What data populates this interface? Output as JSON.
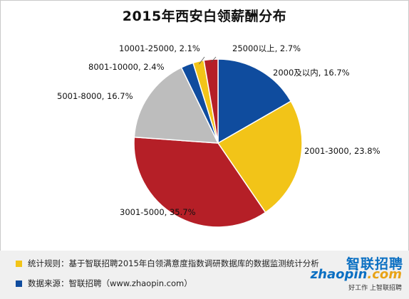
{
  "chart_data": {
    "type": "pie",
    "title": "2015年西安白领薪酬分布",
    "slices": [
      {
        "label": "2000及以内",
        "value": 16.7,
        "display": "2000及以内, 16.7%",
        "color": "#0f4c9e"
      },
      {
        "label": "2001-3000",
        "value": 23.8,
        "display": "2001-3000, 23.8%",
        "color": "#f2c418"
      },
      {
        "label": "3001-5000",
        "value": 35.7,
        "display": "3001-5000, 35.7%",
        "color": "#b51f27"
      },
      {
        "label": "5001-8000",
        "value": 16.7,
        "display": "5001-8000, 16.7%",
        "color": "#bdbdbd"
      },
      {
        "label": "8001-10000",
        "value": 2.4,
        "display": "8001-10000, 2.4%",
        "color": "#0f4c9e"
      },
      {
        "label": "10001-25000",
        "value": 2.1,
        "display": "10001-25000, 2.1%",
        "color": "#f2c418"
      },
      {
        "label": "25000以上",
        "value": 2.7,
        "display": "25000以上, 2.7%",
        "color": "#b51f27"
      }
    ]
  },
  "notes": [
    {
      "text": "统计规则：基于智联招聘2015年白领满意度指数调研数据库的数据监测统计分析",
      "color": "#f2c418"
    },
    {
      "text": "数据来源：智联招聘（www.zhaopin.com）",
      "color": "#0f4c9e"
    }
  ],
  "logo": {
    "name": "智联招聘",
    "domain_main": "zhaopin",
    "domain_tld": ".com",
    "slogan": "好工作 上智联招聘"
  }
}
